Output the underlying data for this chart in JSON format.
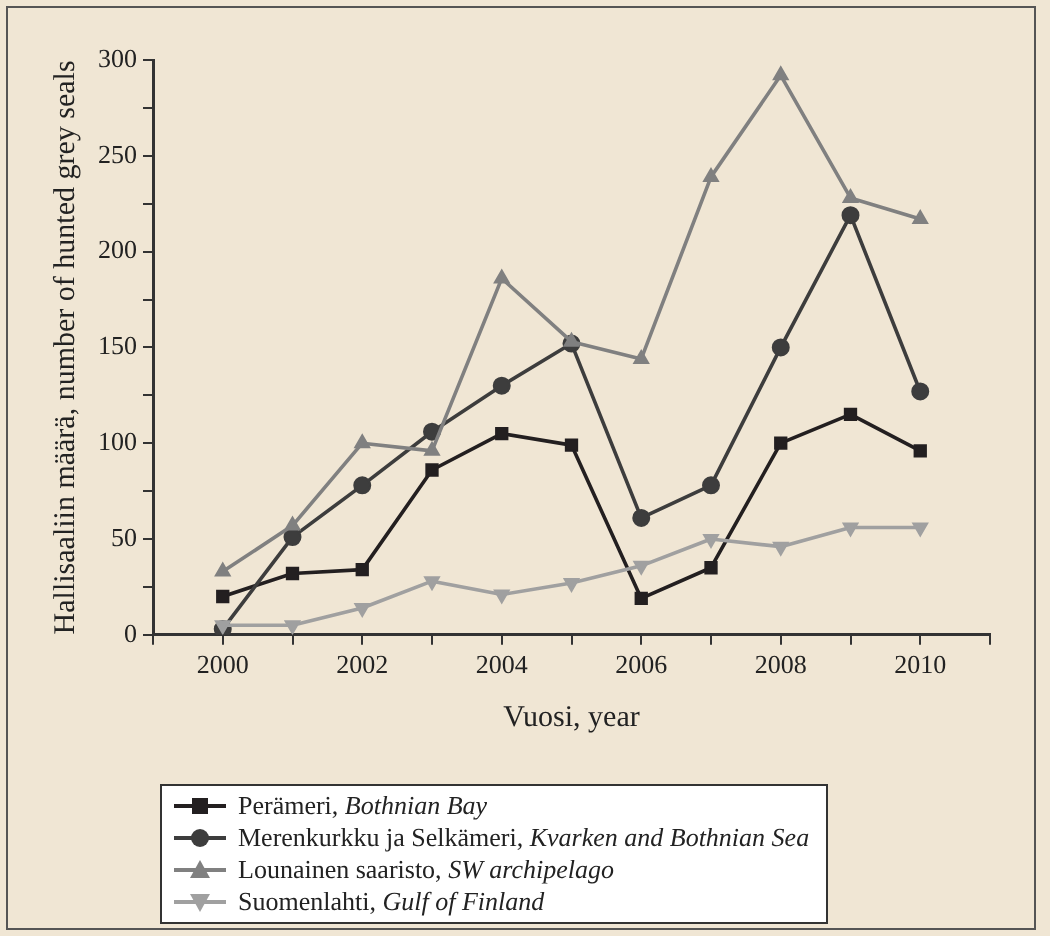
{
  "chart_data": {
    "type": "line",
    "xlabel": "Vuosi, year",
    "ylabel": "Hallisaaliin määrä, number of hunted grey seals",
    "x": [
      2000,
      2001,
      2002,
      2003,
      2004,
      2005,
      2006,
      2007,
      2008,
      2009,
      2010
    ],
    "xlim": [
      1999,
      2011
    ],
    "xticks": [
      {
        "value": 1999,
        "label": null
      },
      2000,
      {
        "value": 2001,
        "label": null
      },
      2002,
      {
        "value": 2003,
        "label": null
      },
      2004,
      {
        "value": 2005,
        "label": null
      },
      2006,
      {
        "value": 2007,
        "label": null
      },
      2008,
      {
        "value": 2009,
        "label": null
      },
      2010,
      {
        "value": 2011,
        "label": null
      }
    ],
    "ylim": [
      0,
      300
    ],
    "yticks": [
      0,
      {
        "value": 25,
        "label": null
      },
      50,
      {
        "value": 75,
        "label": null
      },
      100,
      {
        "value": 125,
        "label": null
      },
      150,
      {
        "value": 175,
        "label": null
      },
      200,
      {
        "value": 225,
        "label": null
      },
      250,
      {
        "value": 275,
        "label": null
      },
      300
    ],
    "grid": false,
    "legend": "bottom",
    "line_style": "solid",
    "series": [
      {
        "name": "Perämeri, Bothnian Bay",
        "color": "#231f20",
        "marker": "square",
        "values": [
          20,
          32,
          34,
          86,
          105,
          99,
          19,
          35,
          100,
          115,
          96
        ]
      },
      {
        "name": "Merenkurkku ja Selkämeri, Kvarken and Bothnian Sea",
        "color": "#3d3d3d",
        "marker": "circle",
        "values": [
          3,
          51,
          78,
          106,
          130,
          152,
          61,
          78,
          150,
          219,
          127
        ]
      },
      {
        "name": "Lounainen saaristo, SW archipelago",
        "color": "#808080",
        "marker": "triangle",
        "values": [
          33,
          57,
          100,
          96,
          186,
          153,
          144,
          239,
          292,
          228,
          217
        ]
      },
      {
        "name": "Suomenlahti, Gulf of Finland",
        "color": "#a0a0a0",
        "marker": "triangle-down",
        "values": [
          5,
          5,
          14,
          28,
          21,
          27,
          36,
          50,
          46,
          56,
          56
        ]
      }
    ]
  }
}
